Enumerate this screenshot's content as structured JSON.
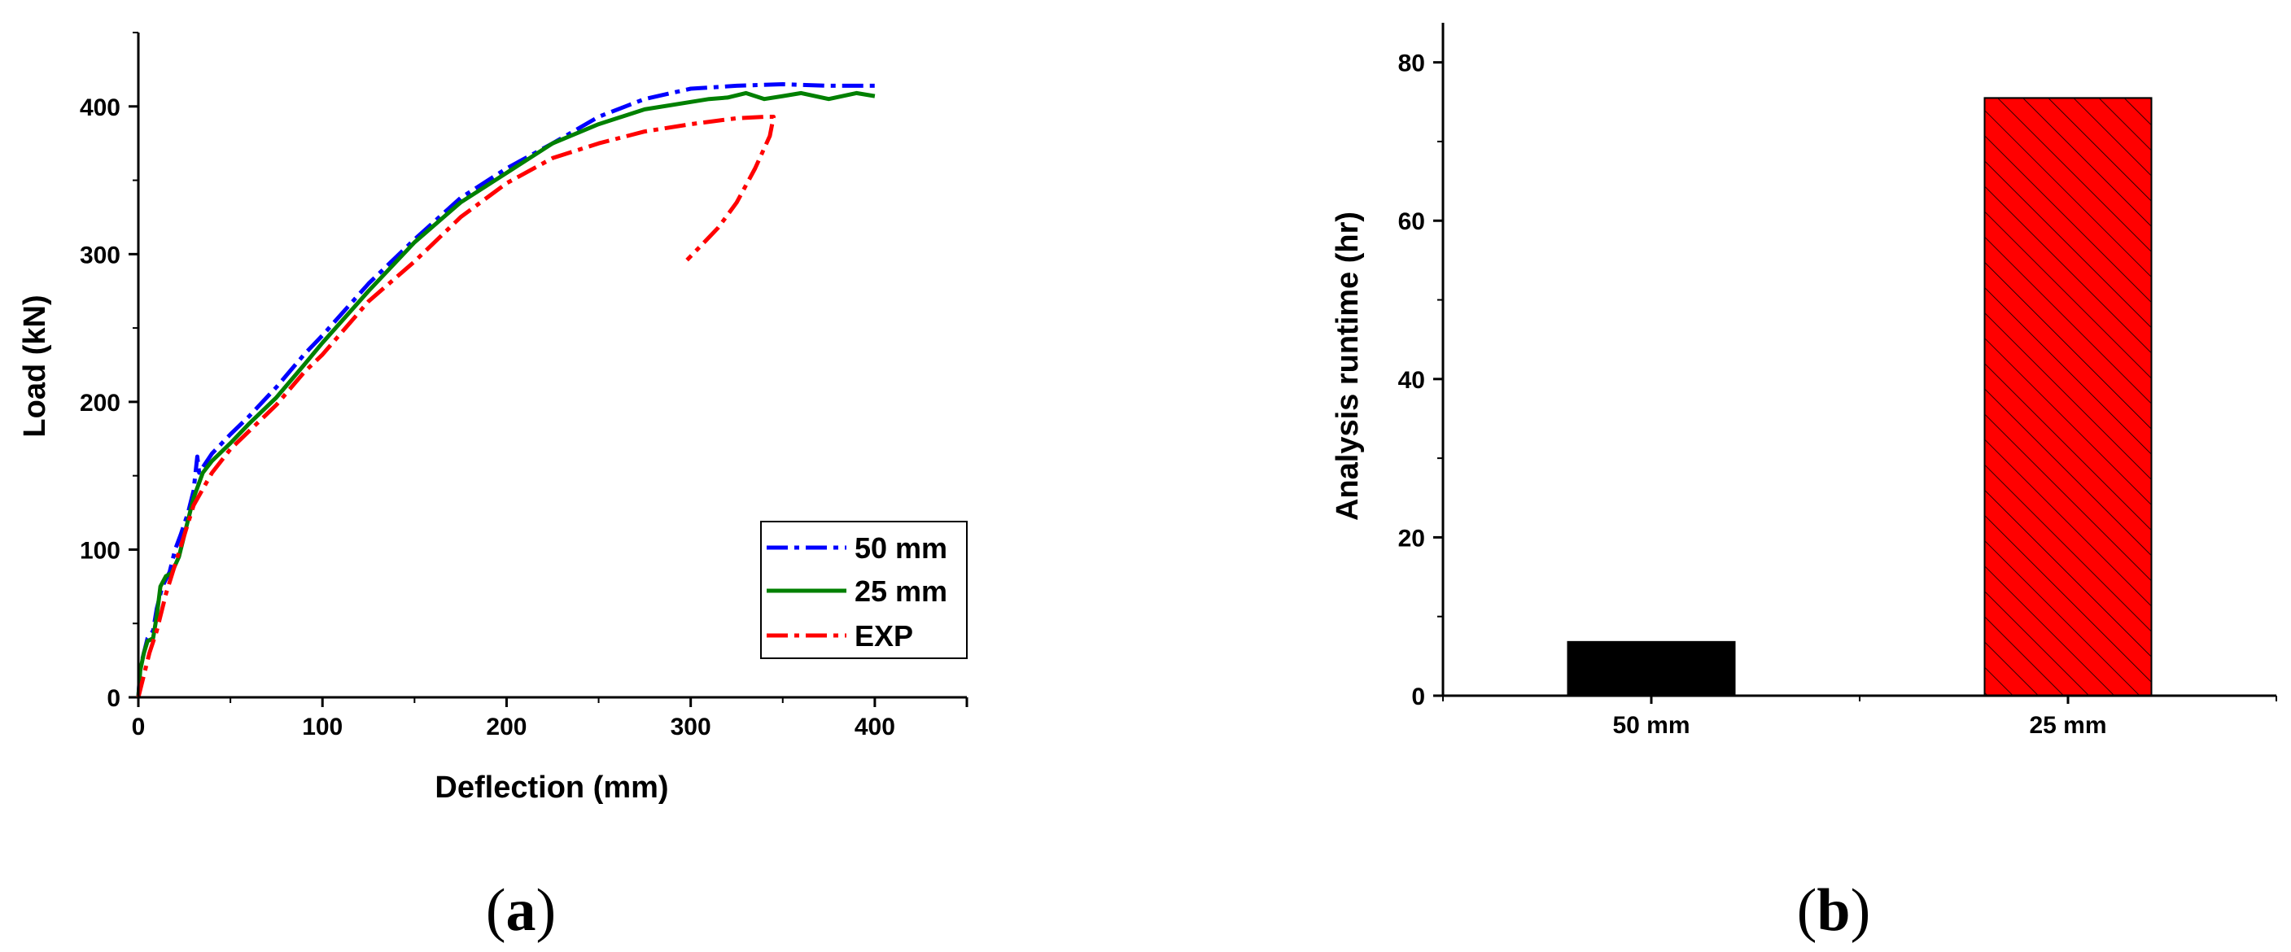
{
  "panels": {
    "a": {
      "label_open": "(",
      "label_letter": "a",
      "label_close": ")"
    },
    "b": {
      "label_open": "(",
      "label_letter": "b",
      "label_close": ")"
    }
  },
  "colors": {
    "series_50mm": "#0000ff",
    "series_25mm": "#008000",
    "series_exp": "#ff0000",
    "bar_50mm": "#000000",
    "bar_25mm": "#ff0000"
  },
  "chart_data": [
    {
      "type": "line",
      "xlabel": "Deflection (mm)",
      "ylabel": "Load (kN)",
      "xlim": [
        0,
        450
      ],
      "ylim": [
        0,
        450
      ],
      "xticks": [
        0,
        100,
        200,
        300,
        400
      ],
      "yticks": [
        0,
        100,
        200,
        300,
        400
      ],
      "grid": false,
      "legend_position": "bottom-right",
      "series": [
        {
          "name": "50 mm",
          "style": "dash-dot",
          "color": "#0000ff",
          "points": [
            [
              0,
              0
            ],
            [
              1,
              20
            ],
            [
              3,
              30
            ],
            [
              5,
              40
            ],
            [
              8,
              45
            ],
            [
              10,
              60
            ],
            [
              13,
              75
            ],
            [
              17,
              85
            ],
            [
              20,
              100
            ],
            [
              23,
              110
            ],
            [
              27,
              125
            ],
            [
              30,
              140
            ],
            [
              32,
              163
            ],
            [
              33,
              152
            ],
            [
              40,
              165
            ],
            [
              50,
              178
            ],
            [
              60,
              190
            ],
            [
              75,
              210
            ],
            [
              90,
              232
            ],
            [
              100,
              245
            ],
            [
              125,
              280
            ],
            [
              150,
              310
            ],
            [
              175,
              338
            ],
            [
              200,
              358
            ],
            [
              225,
              375
            ],
            [
              250,
              393
            ],
            [
              275,
              405
            ],
            [
              300,
              412
            ],
            [
              325,
              414
            ],
            [
              350,
              415
            ],
            [
              375,
              414
            ],
            [
              400,
              414
            ]
          ]
        },
        {
          "name": "25 mm",
          "style": "solid",
          "color": "#008000",
          "points": [
            [
              0,
              0
            ],
            [
              1,
              18
            ],
            [
              3,
              30
            ],
            [
              5,
              38
            ],
            [
              8,
              40
            ],
            [
              10,
              55
            ],
            [
              12,
              75
            ],
            [
              15,
              82
            ],
            [
              18,
              84
            ],
            [
              22,
              95
            ],
            [
              26,
              115
            ],
            [
              30,
              135
            ],
            [
              35,
              152
            ],
            [
              40,
              160
            ],
            [
              50,
              172
            ],
            [
              60,
              185
            ],
            [
              75,
              203
            ],
            [
              90,
              225
            ],
            [
              100,
              240
            ],
            [
              125,
              275
            ],
            [
              150,
              308
            ],
            [
              175,
              335
            ],
            [
              200,
              355
            ],
            [
              225,
              375
            ],
            [
              250,
              388
            ],
            [
              275,
              398
            ],
            [
              300,
              403
            ],
            [
              310,
              405
            ],
            [
              320,
              406
            ],
            [
              330,
              409
            ],
            [
              340,
              405
            ],
            [
              350,
              407
            ],
            [
              360,
              409
            ],
            [
              375,
              405
            ],
            [
              390,
              409
            ],
            [
              400,
              407
            ]
          ]
        },
        {
          "name": "EXP",
          "style": "dash-dot",
          "color": "#ff0000",
          "points": [
            [
              0,
              0
            ],
            [
              3,
              15
            ],
            [
              6,
              30
            ],
            [
              10,
              45
            ],
            [
              15,
              70
            ],
            [
              20,
              90
            ],
            [
              25,
              110
            ],
            [
              30,
              130
            ],
            [
              40,
              152
            ],
            [
              50,
              168
            ],
            [
              60,
              180
            ],
            [
              75,
              198
            ],
            [
              90,
              220
            ],
            [
              100,
              232
            ],
            [
              125,
              268
            ],
            [
              150,
              295
            ],
            [
              175,
              325
            ],
            [
              200,
              348
            ],
            [
              225,
              365
            ],
            [
              250,
              375
            ],
            [
              275,
              383
            ],
            [
              300,
              388
            ],
            [
              325,
              392
            ],
            [
              340,
              393
            ],
            [
              345,
              393
            ],
            [
              343,
              380
            ],
            [
              335,
              358
            ],
            [
              325,
              335
            ],
            [
              315,
              318
            ],
            [
              305,
              305
            ],
            [
              298,
              296
            ]
          ]
        }
      ]
    },
    {
      "type": "bar",
      "xlabel": "",
      "ylabel": "Analysis runtime (hr)",
      "ylim": [
        0,
        85
      ],
      "yticks": [
        0,
        20,
        40,
        60,
        80
      ],
      "grid": false,
      "categories": [
        "50 mm",
        "25 mm"
      ],
      "values": [
        6.8,
        75.5
      ],
      "bar_styles": [
        {
          "color": "#000000",
          "pattern": "solid"
        },
        {
          "color": "#ff0000",
          "pattern": "diagonal-hatch"
        }
      ]
    }
  ]
}
